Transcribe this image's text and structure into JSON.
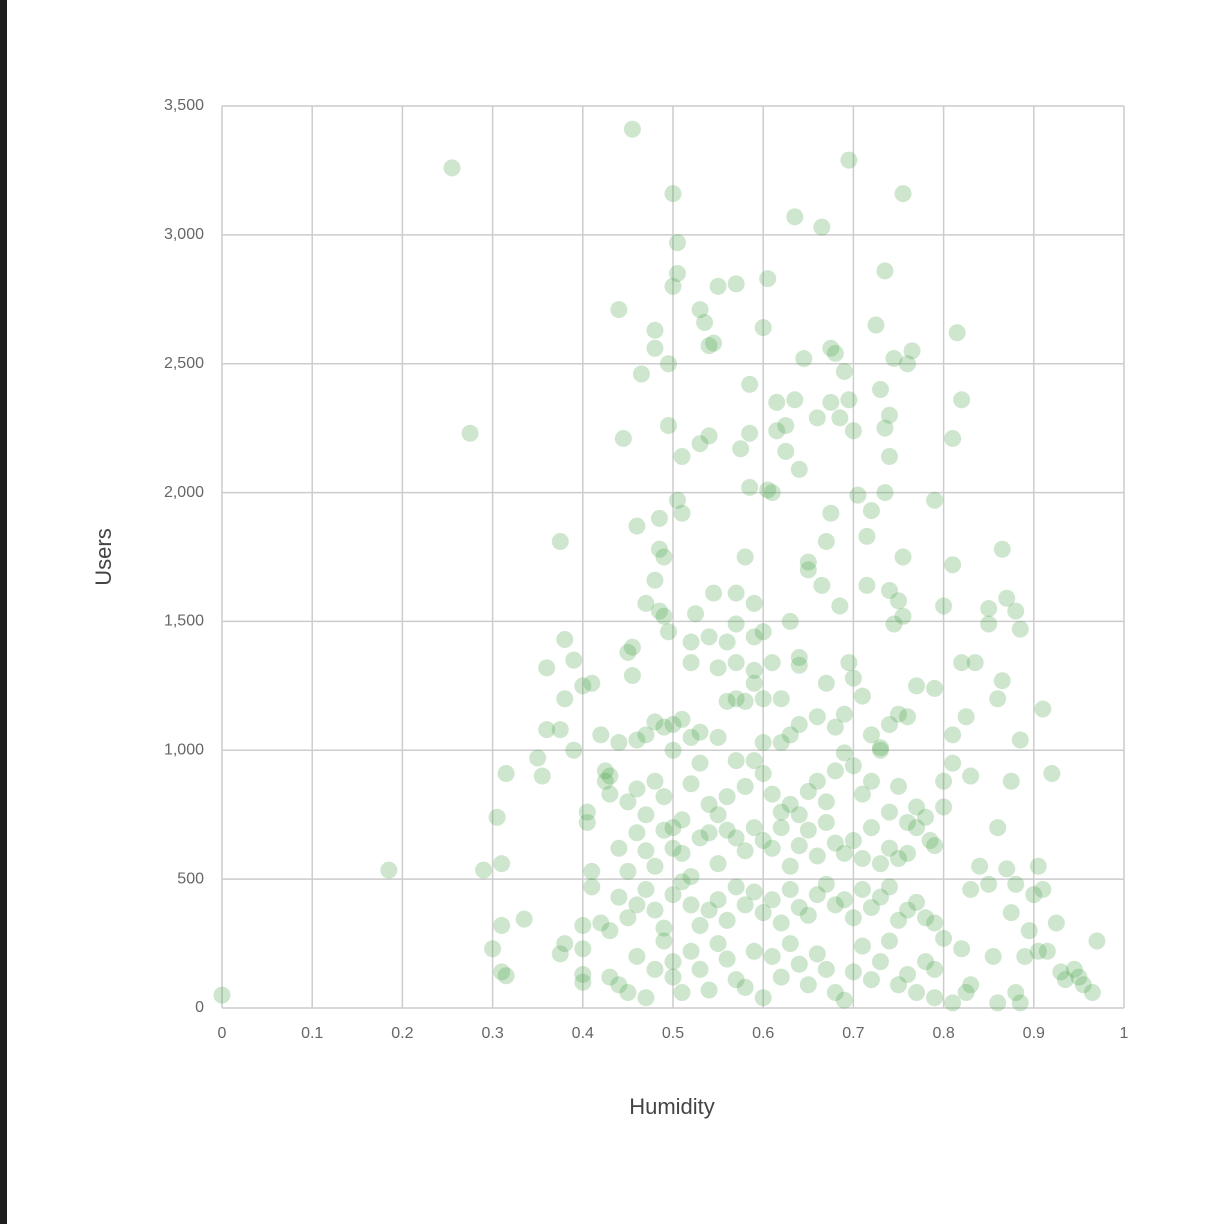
{
  "chart_data": {
    "type": "scatter",
    "x_label": "Humidity",
    "y_label": "Users",
    "color": "#3a9d3a",
    "opacity": 0.25,
    "grid": true,
    "xlim": [
      0,
      1
    ],
    "ylim": [
      0,
      3500
    ],
    "xticks": [
      0,
      0.1,
      0.2,
      0.3,
      0.4,
      0.5,
      0.6,
      0.7,
      0.8,
      0.9,
      1
    ],
    "yticks": [
      0,
      500,
      {
        "value": 1000,
        "label": "1,000"
      },
      {
        "value": 1500,
        "label": "1,500"
      },
      {
        "value": 2000,
        "label": "2,000"
      },
      {
        "value": 2500,
        "label": "2,500"
      },
      {
        "value": 3000,
        "label": "3,000"
      },
      {
        "value": 3500,
        "label": "3,500"
      }
    ],
    "x": [
      0,
      0.255,
      0.275,
      0.185,
      0.29,
      0.305,
      0.31,
      0.315,
      0.3,
      0.31,
      0.315,
      0.31,
      0.335,
      0.375,
      0.38,
      0.36,
      0.36,
      0.375,
      0.35,
      0.355,
      0.38,
      0.39,
      0.39,
      0.4,
      0.41,
      0.375,
      0.38,
      0.4,
      0.4,
      0.4,
      0.4,
      0.405,
      0.405,
      0.41,
      0.41,
      0.42,
      0.42,
      0.43,
      0.425,
      0.425,
      0.43,
      0.44,
      0.445,
      0.455,
      0.46,
      0.45,
      0.455,
      0.455,
      0.465,
      0.47,
      0.48,
      0.48,
      0.48,
      0.495,
      0.495,
      0.485,
      0.485,
      0.49,
      0.485,
      0.49,
      0.495,
      0.5,
      0.505,
      0.505,
      0.5,
      0.505,
      0.51,
      0.51,
      0.525,
      0.52,
      0.53,
      0.535,
      0.54,
      0.545,
      0.54,
      0.53,
      0.55,
      0.57,
      0.545,
      0.54,
      0.56,
      0.57,
      0.57,
      0.575,
      0.58,
      0.585,
      0.585,
      0.585,
      0.59,
      0.6,
      0.605,
      0.605,
      0.61,
      0.6,
      0.615,
      0.615,
      0.625,
      0.625,
      0.635,
      0.635,
      0.64,
      0.645,
      0.65,
      0.65,
      0.66,
      0.665,
      0.665,
      0.67,
      0.675,
      0.675,
      0.675,
      0.68,
      0.685,
      0.685,
      0.69,
      0.695,
      0.7,
      0.695,
      0.705,
      0.715,
      0.715,
      0.72,
      0.725,
      0.73,
      0.735,
      0.735,
      0.735,
      0.74,
      0.74,
      0.745,
      0.74,
      0.745,
      0.75,
      0.755,
      0.755,
      0.755,
      0.76,
      0.765,
      0.79,
      0.79,
      0.8,
      0.81,
      0.81,
      0.815,
      0.82,
      0.82,
      0.835,
      0.85,
      0.85,
      0.86,
      0.865,
      0.865,
      0.87,
      0.88,
      0.885,
      0.885,
      0.875,
      0.91,
      0.92,
      0.925,
      0.97,
      0.965,
      0.955,
      0.95,
      0.945,
      0.93,
      0.935,
      0.915,
      0.905,
      0.9,
      0.905,
      0.91,
      0.895,
      0.89,
      0.875,
      0.88,
      0.87,
      0.86,
      0.855,
      0.86,
      0.885,
      0.88,
      0.85,
      0.84,
      0.83,
      0.83,
      0.825,
      0.81,
      0.81,
      0.8,
      0.8,
      0.79,
      0.785,
      0.77,
      0.78,
      0.79,
      0.8,
      0.79,
      0.81,
      0.82,
      0.83,
      0.825,
      0.5,
      0.5,
      0.51,
      0.52,
      0.53,
      0.55,
      0.56,
      0.57,
      0.58,
      0.59,
      0.6,
      0.62,
      0.63,
      0.64,
      0.66,
      0.67,
      0.68,
      0.69,
      0.695,
      0.7,
      0.71,
      0.72,
      0.73,
      0.74,
      0.75,
      0.76,
      0.77,
      0.6,
      0.62,
      0.63,
      0.64,
      0.64,
      0.61,
      0.59,
      0.59,
      0.57,
      0.55,
      0.52,
      0.47,
      0.48,
      0.49,
      0.46,
      0.44,
      0.43,
      0.45,
      0.46,
      0.47,
      0.48,
      0.49,
      0.5,
      0.51,
      0.52,
      0.53,
      0.54,
      0.55,
      0.56,
      0.57,
      0.58,
      0.59,
      0.6,
      0.61,
      0.62,
      0.63,
      0.64,
      0.65,
      0.66,
      0.67,
      0.68,
      0.69,
      0.7,
      0.71,
      0.72,
      0.73,
      0.74,
      0.75,
      0.76,
      0.77,
      0.78,
      0.44,
      0.45,
      0.46,
      0.47,
      0.48,
      0.49,
      0.5,
      0.51,
      0.52,
      0.53,
      0.54,
      0.55,
      0.56,
      0.57,
      0.58,
      0.59,
      0.6,
      0.61,
      0.62,
      0.63,
      0.64,
      0.65,
      0.66,
      0.67,
      0.68,
      0.69,
      0.7,
      0.71,
      0.72,
      0.73,
      0.74,
      0.75,
      0.76,
      0.44,
      0.45,
      0.46,
      0.47,
      0.48,
      0.49,
      0.5,
      0.51,
      0.52,
      0.53,
      0.54,
      0.55,
      0.56,
      0.57,
      0.58,
      0.59,
      0.6,
      0.61,
      0.62,
      0.63,
      0.64,
      0.65,
      0.66,
      0.67,
      0.68,
      0.69,
      0.7,
      0.71,
      0.72,
      0.73,
      0.74,
      0.75,
      0.76,
      0.77,
      0.43,
      0.44,
      0.45,
      0.46,
      0.47,
      0.48,
      0.49,
      0.5,
      0.5,
      0.51,
      0.52,
      0.53,
      0.54,
      0.55,
      0.56,
      0.57,
      0.58,
      0.59,
      0.6,
      0.61,
      0.62,
      0.63,
      0.64,
      0.65,
      0.66,
      0.67,
      0.68,
      0.69,
      0.7,
      0.71,
      0.72,
      0.73,
      0.74,
      0.75,
      0.76,
      0.77,
      0.78,
      0.79
    ],
    "values": [
      50,
      3260,
      2230,
      535,
      535,
      740,
      560,
      910,
      230,
      140,
      125,
      320,
      345,
      1810,
      1430,
      1320,
      1080,
      1080,
      970,
      900,
      1200,
      1350,
      1000,
      1250,
      1260,
      210,
      250,
      230,
      320,
      130,
      100,
      760,
      720,
      530,
      470,
      1060,
      330,
      300,
      920,
      880,
      830,
      2710,
      2210,
      3410,
      1870,
      1380,
      1400,
      1290,
      2460,
      1570,
      1660,
      2560,
      2630,
      2500,
      2260,
      1780,
      1900,
      1750,
      1540,
      1520,
      1460,
      3160,
      2970,
      2850,
      2800,
      1970,
      2140,
      1920,
      1530,
      1420,
      2710,
      2660,
      2570,
      2580,
      2220,
      2190,
      2800,
      2810,
      1610,
      1440,
      1420,
      1490,
      1610,
      2170,
      1750,
      2420,
      2230,
      2020,
      1570,
      2640,
      2830,
      2010,
      2000,
      1460,
      2350,
      2240,
      2260,
      2160,
      3070,
      2360,
      2090,
      2520,
      1700,
      1730,
      2290,
      3030,
      1640,
      1810,
      1920,
      2350,
      2560,
      2540,
      1560,
      2290,
      2470,
      2360,
      2240,
      3290,
      1990,
      1640,
      1830,
      1930,
      2650,
      2400,
      2000,
      2860,
      2250,
      2300,
      2140,
      2520,
      1620,
      1490,
      1580,
      1520,
      1750,
      3160,
      2500,
      2550,
      1970,
      1240,
      1560,
      2210,
      1720,
      2620,
      2360,
      1340,
      1340,
      1550,
      1490,
      1200,
      1780,
      1270,
      1590,
      1540,
      1470,
      1040,
      880,
      1160,
      910,
      330,
      260,
      60,
      90,
      120,
      150,
      140,
      110,
      220,
      220,
      440,
      550,
      460,
      300,
      200,
      370,
      480,
      540,
      700,
      200,
      20,
      20,
      60,
      480,
      550,
      460,
      900,
      1130,
      1060,
      950,
      880,
      780,
      630,
      650,
      780,
      350,
      330,
      270,
      40,
      20,
      230,
      90,
      60,
      1000,
      1100,
      1120,
      1050,
      1070,
      1050,
      1190,
      1200,
      1190,
      1260,
      1030,
      1030,
      1060,
      1100,
      1130,
      1260,
      1090,
      1140,
      1340,
      1280,
      1210,
      1060,
      1010,
      1100,
      1140,
      1130,
      1250,
      1200,
      1200,
      1500,
      1330,
      1360,
      1340,
      1310,
      1440,
      1340,
      1320,
      1340,
      1060,
      1110,
      1090,
      1040,
      1030,
      900,
      800,
      850,
      750,
      880,
      820,
      700,
      730,
      870,
      950,
      790,
      750,
      820,
      960,
      860,
      960,
      910,
      830,
      760,
      790,
      750,
      840,
      880,
      800,
      920,
      990,
      940,
      830,
      880,
      1000,
      760,
      860,
      720,
      700,
      740,
      620,
      530,
      680,
      610,
      550,
      690,
      620,
      600,
      510,
      660,
      680,
      560,
      690,
      660,
      610,
      700,
      650,
      620,
      700,
      550,
      630,
      690,
      590,
      720,
      640,
      600,
      650,
      580,
      700,
      560,
      620,
      580,
      600,
      430,
      350,
      400,
      460,
      380,
      310,
      440,
      490,
      400,
      320,
      380,
      420,
      340,
      470,
      400,
      450,
      370,
      420,
      330,
      460,
      390,
      360,
      440,
      480,
      400,
      420,
      350,
      460,
      390,
      430,
      470,
      340,
      380,
      410,
      120,
      90,
      60,
      200,
      40,
      150,
      260,
      180,
      120,
      60,
      220,
      150,
      70,
      250,
      190,
      110,
      80,
      220,
      40,
      200,
      120,
      250,
      170,
      90,
      210,
      150,
      60,
      30,
      140,
      240,
      110,
      180,
      260,
      90,
      130,
      60,
      180,
      150
    ]
  }
}
